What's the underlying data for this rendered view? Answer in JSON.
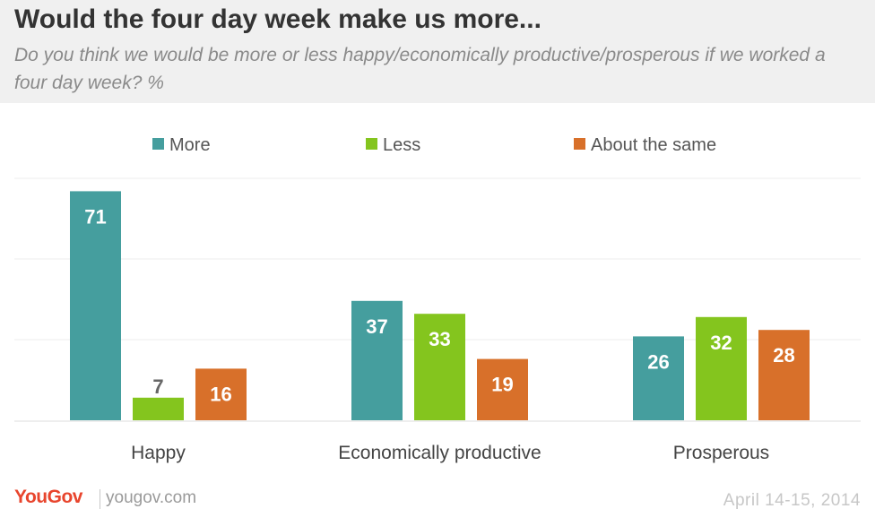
{
  "title": "Would the four day week make us more...",
  "subtitle": "Do you think we would be more or less happy/economically productive/prosperous if we worked a four day week? %",
  "footer": {
    "logo": "YouGov",
    "url": "yougov.com",
    "date": "April 14-15, 2014"
  },
  "chart_data": {
    "type": "bar",
    "categories": [
      "Happy",
      "Economically productive",
      "Prosperous"
    ],
    "series": [
      {
        "name": "More",
        "color": "#459e9e",
        "values": [
          71,
          37,
          26
        ]
      },
      {
        "name": "Less",
        "color": "#84c51e",
        "values": [
          7,
          33,
          32
        ]
      },
      {
        "name": "About the same",
        "color": "#d8702a",
        "values": [
          16,
          19,
          28
        ]
      }
    ],
    "ylim": [
      0,
      75
    ],
    "grid": true,
    "legend": "top-center",
    "data_labels": true
  }
}
